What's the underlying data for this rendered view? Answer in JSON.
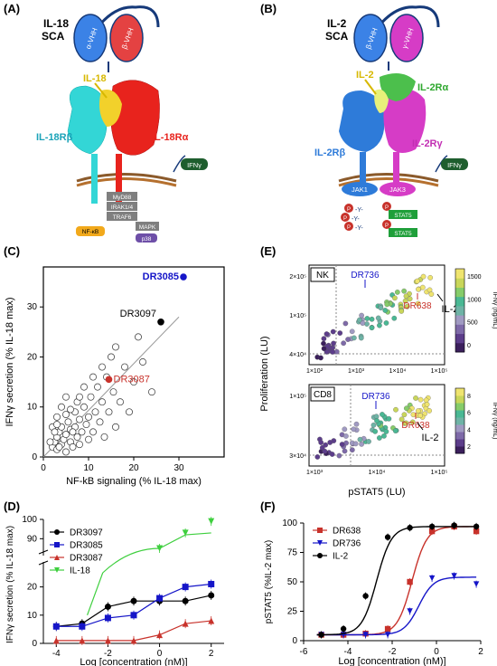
{
  "panel_letters": {
    "a": "(A)",
    "b": "(B)",
    "c": "(C)",
    "d": "(D)",
    "e": "(E)",
    "f": "(F)"
  },
  "panelA": {
    "title_line1": "IL-18",
    "title_line2": "SCA",
    "vhh_left": "α-VHH",
    "vhh_right": "β-VHH",
    "ligand": "IL-18",
    "receptor_beta": "IL-18Rβ",
    "receptor_alpha": "IL-18Rα",
    "ifn_badge": "IFNγ",
    "signaling": [
      "MyD88",
      "IRAK1/4",
      "TRAF6"
    ],
    "nfkb": "NF-κB",
    "mapk": "MAPK",
    "p38": "p38"
  },
  "panelB": {
    "title_line1": "IL-2",
    "title_line2": "SCA",
    "vhh_left": "β-VHH",
    "vhh_right": "γ-VHH",
    "ligand": "IL-2",
    "receptor_alpha": "IL-2Rα",
    "receptor_beta": "IL-2Rβ",
    "receptor_gamma": "IL-2Rγ",
    "jak1": "JAK1",
    "jak3": "JAK3",
    "ifn_badge": "IFNγ",
    "stat": "STAT5",
    "phospho": "P",
    "tyr": "-Y-"
  },
  "colors": {
    "blue": "#1515c8",
    "red": "#c8322b",
    "black": "#000000",
    "green": "#3ecf3e",
    "gray": "#bdbdbd"
  },
  "chart_data": [
    {
      "panel": "C",
      "type": "scatter",
      "xlabel": "NF-kB signaling (% IL-18 max)",
      "ylabel": "IFNγ secretion (% IL-18 max)",
      "xlim": [
        0,
        40
      ],
      "ylim": [
        0,
        38
      ],
      "xticks": [
        0,
        10,
        20,
        30
      ],
      "yticks": [
        0,
        10,
        20,
        30
      ],
      "trendline": [
        [
          0,
          0
        ],
        [
          30,
          28
        ]
      ],
      "gray_points": [
        [
          2,
          2
        ],
        [
          2.5,
          3
        ],
        [
          3,
          1.5
        ],
        [
          3,
          4
        ],
        [
          3.5,
          5
        ],
        [
          4,
          2.5
        ],
        [
          4,
          6
        ],
        [
          4.5,
          3.5
        ],
        [
          5,
          1
        ],
        [
          5,
          4.5
        ],
        [
          5.5,
          7
        ],
        [
          6,
          3
        ],
        [
          6,
          5.5
        ],
        [
          6.5,
          2
        ],
        [
          7,
          6
        ],
        [
          7,
          9
        ],
        [
          7.5,
          4
        ],
        [
          8,
          2.5
        ],
        [
          8,
          7.5
        ],
        [
          8.5,
          5
        ],
        [
          9,
          10
        ],
        [
          9.5,
          6.5
        ],
        [
          10,
          3.5
        ],
        [
          10,
          8
        ],
        [
          10.5,
          12
        ],
        [
          11,
          5
        ],
        [
          11.5,
          9
        ],
        [
          12,
          14
        ],
        [
          12.5,
          7
        ],
        [
          13,
          11
        ],
        [
          13.5,
          4
        ],
        [
          14,
          16
        ],
        [
          14.5,
          9
        ],
        [
          15,
          20
        ],
        [
          15.5,
          13
        ],
        [
          16,
          6
        ],
        [
          16,
          22
        ],
        [
          17,
          11
        ],
        [
          18,
          18
        ],
        [
          19,
          9
        ],
        [
          20,
          15
        ],
        [
          21,
          24
        ],
        [
          22,
          19
        ],
        [
          24,
          13
        ],
        [
          3,
          8
        ],
        [
          4,
          10
        ],
        [
          5,
          12
        ],
        [
          2,
          6
        ],
        [
          1.5,
          3
        ],
        [
          2.5,
          5
        ],
        [
          3.5,
          2
        ],
        [
          6,
          9.5
        ],
        [
          7.5,
          11
        ],
        [
          9,
          14
        ],
        [
          11,
          16
        ],
        [
          13,
          18
        ],
        [
          3,
          6.5
        ],
        [
          5,
          8.5
        ],
        [
          6.5,
          5
        ],
        [
          8,
          12
        ]
      ],
      "highlight_points": [
        {
          "name": "DR3085",
          "x": 31,
          "y": 36,
          "color": "#1515c8"
        },
        {
          "name": "DR3097",
          "x": 26,
          "y": 27,
          "color": "#000000"
        },
        {
          "name": "DR3087",
          "x": 14.5,
          "y": 15.5,
          "color": "#c8322b"
        }
      ]
    },
    {
      "panel": "D",
      "type": "line",
      "xlabel": "Log [concentration (nM)]",
      "ylabel": "IFNγ secretion (% IL-18 max)",
      "x": [
        -4,
        -3,
        -2,
        -1,
        0,
        1,
        2
      ],
      "xticks": [
        -4,
        -2,
        0,
        2
      ],
      "yticks_low": [
        0,
        10,
        20
      ],
      "yticks_high": [
        90,
        100
      ],
      "axis_break": true,
      "series": [
        {
          "name": "DR3097",
          "color": "#000000",
          "marker": "circle",
          "values": [
            6,
            7,
            13,
            15,
            15,
            15,
            17
          ]
        },
        {
          "name": "DR3085",
          "color": "#1515c8",
          "marker": "square",
          "values": [
            6,
            6,
            9,
            10,
            16,
            20,
            21
          ]
        },
        {
          "name": "DR3087",
          "color": "#c8322b",
          "marker": "triangle",
          "values": [
            1,
            1,
            1,
            1,
            3,
            7,
            8
          ]
        },
        {
          "name": "IL-18",
          "color": "#3ecf3e",
          "marker": "triangle-down",
          "values": [
            null,
            null,
            null,
            null,
            85,
            93,
            99
          ]
        }
      ]
    },
    {
      "panel": "E",
      "type": "scatter",
      "xlabel": "pSTAT5 (LU)",
      "ylabel": "Proliferation (LU)",
      "subplots": [
        {
          "name": "NK",
          "annotations": [
            "DR736",
            "DR638",
            "IL-2"
          ],
          "colorbar_label": "IFNγ (ng/mL)",
          "colorbar_ticks": [
            "1500",
            "1000",
            "500",
            "0"
          ],
          "yticks": [
            "2×10⁵",
            "1×10⁵",
            "4×10⁴"
          ],
          "xticks": [
            "1×10²",
            "1×10³",
            "1×10⁴",
            "1×10⁵"
          ]
        },
        {
          "name": "CD8",
          "annotations": [
            "DR736",
            "DR638",
            "IL-2"
          ],
          "colorbar_label": "IFNγ (ng/mL)",
          "colorbar_ticks": [
            "8",
            "6",
            "4",
            "2"
          ],
          "yticks": [
            "1×10⁵",
            "3×10⁴"
          ],
          "xticks": [
            "1×10³",
            "1×10⁴",
            "1×10⁵"
          ]
        }
      ]
    },
    {
      "panel": "F",
      "type": "line",
      "xlabel": "Log [concentration (nM)]",
      "ylabel": "pSTAT5 (%IL-2 max)",
      "xlim": [
        -6,
        2
      ],
      "ylim": [
        0,
        100
      ],
      "xticks": [
        -6,
        -4,
        -2,
        0,
        2
      ],
      "yticks": [
        0,
        25,
        50,
        75,
        100
      ],
      "series": [
        {
          "name": "DR638",
          "color": "#c8322b",
          "marker": "square",
          "x": [
            -5.2,
            -4.2,
            -3.2,
            -2.2,
            -1.2,
            -0.2,
            0.8,
            1.8
          ],
          "values": [
            5,
            5,
            6,
            10,
            50,
            93,
            97,
            93
          ],
          "ec50": -1.1,
          "top": 97,
          "bottom": 5
        },
        {
          "name": "DR736",
          "color": "#1515c8",
          "marker": "triangle-down",
          "x": [
            -5.2,
            -4.2,
            -3.2,
            -2.2,
            -1.2,
            -0.2,
            0.8,
            1.8
          ],
          "values": [
            5,
            5,
            5,
            5,
            25,
            53,
            55,
            48
          ],
          "ec50": -0.8,
          "top": 54,
          "bottom": 5
        },
        {
          "name": "IL-2",
          "color": "#000000",
          "marker": "circle",
          "x": [
            -5.2,
            -4.2,
            -3.2,
            -2.2,
            -1.2,
            -0.2,
            0.8,
            1.8
          ],
          "values": [
            5,
            10,
            38,
            88,
            96,
            97,
            98,
            97
          ],
          "ec50": -2.7,
          "top": 97,
          "bottom": 5
        }
      ]
    }
  ]
}
